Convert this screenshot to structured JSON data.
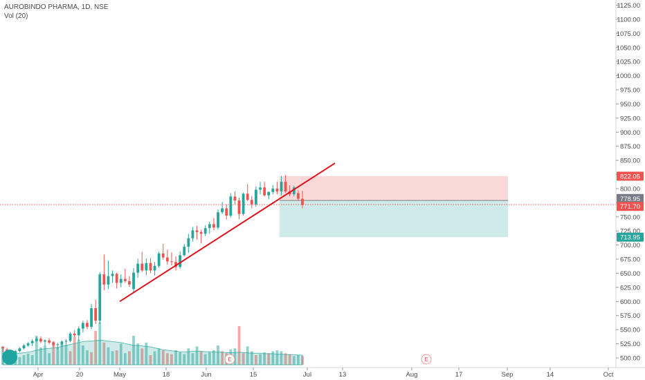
{
  "header": {
    "title": "AUROBINDO PHARMA, 1D, NSE",
    "volume": "Vol (20)"
  },
  "chart_data": {
    "type": "candlestick",
    "symbol": "AUROBINDO PHARMA",
    "interval": "1D",
    "exchange": "NSE",
    "y_ticks": [
      1125,
      1100,
      1075,
      1050,
      1025,
      1000,
      975,
      950,
      925,
      900,
      875,
      850,
      825,
      800,
      775,
      750,
      725,
      700,
      675,
      650,
      625,
      600,
      575,
      550,
      525,
      500
    ],
    "ylim": [
      495,
      1133
    ],
    "x_labels": [
      "Apr",
      "20",
      "May",
      "18",
      "Jun",
      "15",
      "Jul",
      "13",
      "Aug",
      "17",
      "Sep",
      "14",
      "Oct"
    ],
    "candles": [
      [
        519,
        521,
        510,
        517
      ],
      [
        515,
        518,
        506,
        509
      ],
      [
        509,
        512,
        503,
        506
      ],
      [
        506,
        514,
        504,
        512
      ],
      [
        512,
        519,
        510,
        517
      ],
      [
        517,
        524,
        515,
        522
      ],
      [
        522,
        528,
        520,
        526
      ],
      [
        526,
        533,
        521,
        530
      ],
      [
        530,
        537,
        528,
        534
      ],
      [
        534,
        538,
        526,
        529
      ],
      [
        529,
        533,
        522,
        531
      ],
      [
        531,
        535,
        524,
        527
      ],
      [
        527,
        530,
        520,
        523
      ],
      [
        523,
        527,
        515,
        524
      ],
      [
        524,
        531,
        520,
        529
      ],
      [
        529,
        533,
        524,
        530
      ],
      [
        530,
        546,
        528,
        543
      ],
      [
        543,
        549,
        537,
        540
      ],
      [
        540,
        556,
        530,
        552
      ],
      [
        552,
        566,
        545,
        562
      ],
      [
        562,
        567,
        551,
        555
      ],
      [
        555,
        596,
        551,
        588
      ],
      [
        588,
        603,
        560,
        566
      ],
      [
        566,
        652,
        560,
        648
      ],
      [
        648,
        683,
        620,
        630
      ],
      [
        630,
        672,
        622,
        645
      ],
      [
        645,
        655,
        633,
        649
      ],
      [
        649,
        651,
        623,
        633
      ],
      [
        633,
        648,
        625,
        640
      ],
      [
        640,
        658,
        633,
        636
      ],
      [
        636,
        645,
        626,
        630
      ],
      [
        622,
        659,
        615,
        651
      ],
      [
        651,
        676,
        642,
        667
      ],
      [
        667,
        688,
        652,
        655
      ],
      [
        655,
        676,
        646,
        668
      ],
      [
        668,
        677,
        650,
        655
      ],
      [
        655,
        670,
        646,
        663
      ],
      [
        663,
        688,
        660,
        685
      ],
      [
        685,
        702,
        674,
        678
      ],
      [
        678,
        692,
        665,
        671
      ],
      [
        671,
        687,
        664,
        670
      ],
      [
        670,
        680,
        655,
        661
      ],
      [
        661,
        689,
        658,
        682
      ],
      [
        682,
        702,
        680,
        697
      ],
      [
        697,
        720,
        686,
        712
      ],
      [
        712,
        732,
        706,
        726
      ],
      [
        726,
        734,
        710,
        723
      ],
      [
        723,
        727,
        703,
        720
      ],
      [
        720,
        735,
        716,
        730
      ],
      [
        730,
        741,
        720,
        737
      ],
      [
        737,
        748,
        726,
        731
      ],
      [
        731,
        763,
        728,
        758
      ],
      [
        758,
        776,
        755,
        765
      ],
      [
        765,
        772,
        745,
        752
      ],
      [
        752,
        792,
        749,
        786
      ],
      [
        786,
        795,
        772,
        779
      ],
      [
        779,
        784,
        746,
        755
      ],
      [
        755,
        793,
        752,
        791
      ],
      [
        791,
        808,
        778,
        780
      ],
      [
        780,
        787,
        765,
        772
      ],
      [
        772,
        804,
        768,
        798
      ],
      [
        798,
        812,
        790,
        802
      ],
      [
        802,
        812,
        786,
        788
      ],
      [
        788,
        795,
        781,
        794
      ],
      [
        794,
        806,
        790,
        800
      ],
      [
        800,
        812,
        790,
        795
      ],
      [
        795,
        822,
        788,
        812
      ],
      [
        812,
        824,
        793,
        795
      ],
      [
        795,
        806,
        786,
        790
      ],
      [
        790,
        805,
        786,
        802
      ],
      [
        792,
        797,
        778,
        782
      ],
      [
        782,
        796,
        765,
        771
      ]
    ],
    "volume": [
      [
        38,
        1
      ],
      [
        22,
        0
      ],
      [
        16,
        1
      ],
      [
        26,
        1
      ],
      [
        16,
        1
      ],
      [
        20,
        1
      ],
      [
        23,
        1
      ],
      [
        20,
        1
      ],
      [
        60,
        1
      ],
      [
        36,
        1
      ],
      [
        40,
        1
      ],
      [
        24,
        1
      ],
      [
        48,
        0
      ],
      [
        36,
        1
      ],
      [
        44,
        1
      ],
      [
        42,
        1
      ],
      [
        28,
        0
      ],
      [
        58,
        0
      ],
      [
        52,
        1
      ],
      [
        40,
        1
      ],
      [
        30,
        1
      ],
      [
        26,
        0
      ],
      [
        70,
        0
      ],
      [
        88,
        1
      ],
      [
        46,
        0
      ],
      [
        36,
        1
      ],
      [
        28,
        1
      ],
      [
        30,
        0
      ],
      [
        44,
        1
      ],
      [
        24,
        1
      ],
      [
        28,
        0
      ],
      [
        60,
        1
      ],
      [
        44,
        1
      ],
      [
        34,
        0
      ],
      [
        46,
        1
      ],
      [
        20,
        0
      ],
      [
        28,
        1
      ],
      [
        34,
        1
      ],
      [
        30,
        0
      ],
      [
        24,
        0
      ],
      [
        22,
        0
      ],
      [
        30,
        1
      ],
      [
        26,
        1
      ],
      [
        22,
        1
      ],
      [
        34,
        1
      ],
      [
        24,
        1
      ],
      [
        38,
        1
      ],
      [
        28,
        0
      ],
      [
        22,
        1
      ],
      [
        26,
        1
      ],
      [
        30,
        1
      ],
      [
        40,
        1
      ],
      [
        28,
        0
      ],
      [
        24,
        0
      ],
      [
        32,
        1
      ],
      [
        34,
        1
      ],
      [
        80,
        0
      ],
      [
        24,
        0
      ],
      [
        38,
        1
      ],
      [
        28,
        1
      ],
      [
        20,
        0
      ],
      [
        22,
        1
      ],
      [
        26,
        1
      ],
      [
        24,
        0
      ],
      [
        28,
        1
      ],
      [
        30,
        1
      ],
      [
        28,
        1
      ],
      [
        24,
        0
      ],
      [
        22,
        0
      ],
      [
        18,
        1
      ],
      [
        20,
        1
      ],
      [
        18,
        0
      ]
    ],
    "volume_ma": [
      24,
      23,
      22,
      23,
      24,
      25,
      26,
      28,
      30,
      32,
      33,
      34,
      35,
      36,
      38,
      40,
      42,
      44,
      46,
      48,
      49,
      49,
      50,
      51,
      50,
      49,
      48,
      47,
      46,
      44,
      42,
      40,
      40,
      39,
      38,
      37,
      35,
      33,
      31,
      30,
      29,
      28,
      27,
      27,
      27,
      28,
      28,
      28,
      27,
      27,
      27,
      26,
      26,
      25,
      25,
      25,
      26,
      25,
      25,
      24,
      24,
      24,
      23,
      23,
      23,
      22,
      22,
      21,
      21,
      21,
      20,
      20
    ],
    "trendline": [
      [
        600,
        "May"
      ],
      [
        845,
        "Jul"
      ]
    ],
    "position_tool": {
      "target": 822.05,
      "entry": 778.95,
      "stop": 713.95
    },
    "current_price": 771.7,
    "price_labels": [
      {
        "value": "822.05",
        "color": "#ef5350"
      },
      {
        "value": "778.95",
        "color": "#787b86"
      },
      {
        "value": "771.70",
        "color": "#ef5350"
      },
      {
        "value": "713.95",
        "color": "#26a69a"
      }
    ],
    "earnings_markers": [
      "E",
      "E"
    ],
    "colors": {
      "up": "#26a69a",
      "down": "#ef5350",
      "trend": "#e0101a",
      "profit": "rgba(38,166,154,0.22)",
      "loss": "rgba(239,83,80,0.22)"
    }
  }
}
